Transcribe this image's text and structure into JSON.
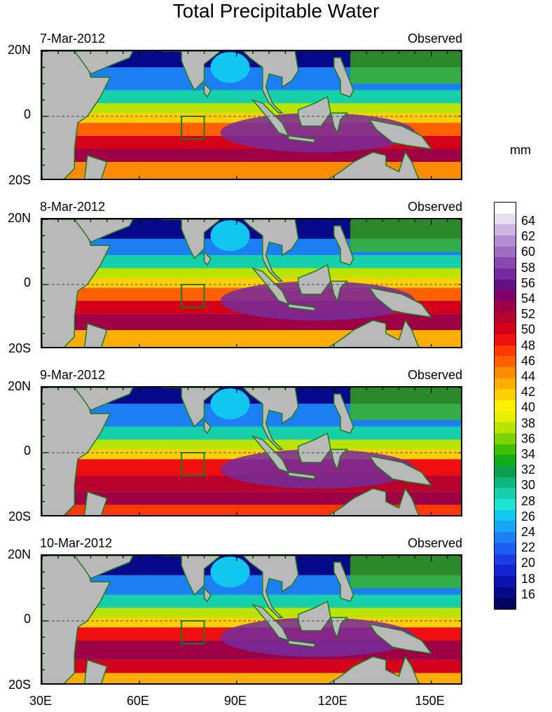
{
  "title": "Total Precipitable Water",
  "unit": "mm",
  "x_ticks": [
    "30E",
    "60E",
    "90E",
    "120E",
    "150E"
  ],
  "y_ticks": [
    "20N",
    "0",
    "20S"
  ],
  "panels": [
    {
      "date": "7-Mar-2012",
      "label": "Observed"
    },
    {
      "date": "8-Mar-2012",
      "label": "Observed"
    },
    {
      "date": "9-Mar-2012",
      "label": "Observed"
    },
    {
      "date": "10-Mar-2012",
      "label": "Observed"
    }
  ],
  "colorbar": {
    "labels": [
      "64",
      "62",
      "60",
      "58",
      "56",
      "54",
      "52",
      "50",
      "48",
      "46",
      "44",
      "42",
      "40",
      "38",
      "36",
      "34",
      "32",
      "30",
      "28",
      "26",
      "24",
      "22",
      "20",
      "18",
      "16"
    ],
    "colors": [
      "#ffffff",
      "#e8dcef",
      "#cdb5e0",
      "#b58fd1",
      "#9e6cc2",
      "#8848b0",
      "#742b9e",
      "#650f80",
      "#80006a",
      "#9d0045",
      "#b7002b",
      "#d4001a",
      "#ef0f0f",
      "#ff3a00",
      "#ff6100",
      "#ff8c00",
      "#ffad00",
      "#ffcf00",
      "#ffef00",
      "#e6f000",
      "#b9e400",
      "#7fd200",
      "#3dbf00",
      "#11ad19",
      "#0ba04d",
      "#10b77b",
      "#15d0a8",
      "#1ee4d2",
      "#12c7ef",
      "#17a5f5",
      "#1c7ff3",
      "#1d5ff0",
      "#1b3ee6",
      "#1523d1",
      "#0b12ad",
      "#050a8a",
      "#020560"
    ]
  }
}
